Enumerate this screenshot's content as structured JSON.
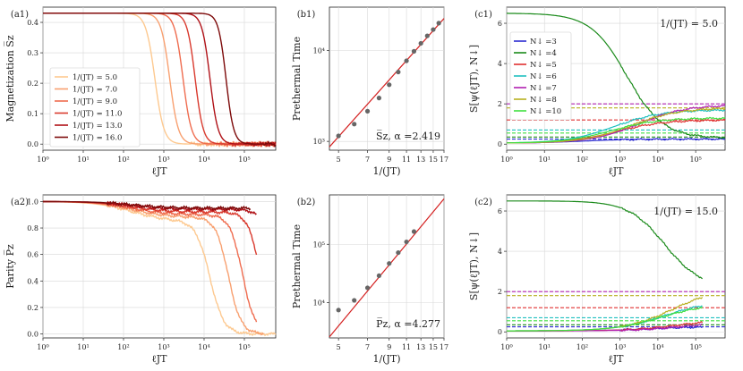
{
  "figure": {
    "colors": {
      "mag_series": [
        "#fdc990",
        "#f8a070",
        "#ef6c4f",
        "#d93a2e",
        "#b01218",
        "#7d0a0a"
      ],
      "fit_line": "#d42020",
      "points": "#666666",
      "dims": {
        "3": "#2a2ad0",
        "4": "#1a8a1a",
        "5": "#e03030",
        "6": "#20c0c0",
        "7": "#b020b0",
        "8": "#b8b020",
        "10": "#40e040"
      }
    }
  },
  "chart_data": [
    {
      "id": "a1",
      "type": "line",
      "panel_label": "(a1)",
      "xlabel": "ℓJT",
      "ylabel": "Magnetization S̅z",
      "xscale": "log",
      "xlim": [
        1,
        600000
      ],
      "ylim": [
        -0.02,
        0.45
      ],
      "xticks": [
        "10⁰",
        "10¹",
        "10²",
        "10³",
        "10⁴",
        "10⁵"
      ],
      "yticks": [
        "0.0",
        "0.1",
        "0.2",
        "0.3",
        "0.4"
      ],
      "legend": [
        "1/(JT) = 5.0",
        "1/(JT) = 7.0",
        "1/(JT) = 9.0",
        "1/(JT) = 11.0",
        "1/(JT) = 13.0",
        "1/(JT) = 16.0"
      ],
      "series": [
        {
          "name": "1/(JT) = 5.0",
          "plateau": 0.43,
          "decay_center": 600,
          "width": 0.45,
          "end": 600000
        },
        {
          "name": "1/(JT) = 7.0",
          "plateau": 0.43,
          "decay_center": 1400,
          "width": 0.43,
          "end": 600000
        },
        {
          "name": "1/(JT) = 9.0",
          "plateau": 0.43,
          "decay_center": 3000,
          "width": 0.42,
          "end": 600000
        },
        {
          "name": "1/(JT) = 11.0",
          "plateau": 0.43,
          "decay_center": 6000,
          "width": 0.4,
          "end": 600000
        },
        {
          "name": "1/(JT) = 13.0",
          "plateau": 0.43,
          "decay_center": 14000,
          "width": 0.4,
          "end": 600000
        },
        {
          "name": "1/(JT) = 16.0",
          "plateau": 0.43,
          "decay_center": 35000,
          "width": 0.38,
          "end": 600000
        }
      ]
    },
    {
      "id": "a2",
      "type": "line",
      "panel_label": "(a2)",
      "xlabel": "ℓJT",
      "ylabel": "Parity P̅z",
      "xscale": "log",
      "xlim": [
        1,
        600000
      ],
      "ylim": [
        -0.03,
        1.05
      ],
      "xticks": [
        "10⁰",
        "10¹",
        "10²",
        "10³",
        "10⁴",
        "10⁵"
      ],
      "yticks": [
        "0.0",
        "0.2",
        "0.4",
        "0.6",
        "0.8",
        "1.0"
      ],
      "series": [
        {
          "name": "1/(JT) = 5.0",
          "plateau_drop": 0.15,
          "decay_center": 14000,
          "width": 0.55,
          "end": 600000
        },
        {
          "name": "1/(JT) = 7.0",
          "plateau_drop": 0.12,
          "decay_center": 40000,
          "width": 0.5,
          "end": 300000
        },
        {
          "name": "1/(JT) = 9.0",
          "plateau_drop": 0.1,
          "decay_center": 90000,
          "width": 0.5,
          "end": 200000
        },
        {
          "name": "1/(JT) = 11.0",
          "plateau_drop": 0.08,
          "decay_center": 250000,
          "width": 0.5,
          "end": 200000
        },
        {
          "name": "1/(JT) = 13.0",
          "plateau_drop": 0.06,
          "decay_center": 600000,
          "width": 0.5,
          "end": 200000
        },
        {
          "name": "1/(JT) = 16.0",
          "plateau_drop": 0.05,
          "decay_center": 2000000,
          "width": 0.5,
          "end": 140000
        }
      ]
    },
    {
      "id": "b1",
      "type": "scatter",
      "panel_label": "(b1)",
      "xlabel": "1/(JT)",
      "ylabel": "Prethermal Time",
      "xscale": "log",
      "yscale": "log",
      "xlim": [
        4.5,
        17
      ],
      "ylim": [
        800,
        30000
      ],
      "xticks": [
        5,
        7,
        9,
        11,
        13,
        15,
        17
      ],
      "xtick_labels": [
        "5",
        "7",
        "9",
        "11",
        "13",
        "15",
        "17"
      ],
      "yticks": [
        "10³",
        "10⁴"
      ],
      "x": [
        5,
        6,
        7,
        8,
        9,
        10,
        11,
        12,
        13,
        14,
        15,
        16
      ],
      "y": [
        1150,
        1550,
        2150,
        3000,
        4200,
        5800,
        7700,
        9800,
        12000,
        14500,
        17000,
        20000
      ],
      "fit": {
        "x": [
          4.5,
          17
        ],
        "y": [
          870,
          22500
        ]
      },
      "annotation": "S̅z, α =2.419"
    },
    {
      "id": "b2",
      "type": "scatter",
      "panel_label": "(b2)",
      "xlabel": "1/(JT)",
      "ylabel": "Prethermal Time",
      "xscale": "log",
      "yscale": "log",
      "xlim": [
        4.5,
        17
      ],
      "ylim": [
        2500,
        700000
      ],
      "xticks": [
        5,
        7,
        9,
        11,
        13,
        15,
        17
      ],
      "xtick_labels": [
        "5",
        "7",
        "9",
        "11",
        "13",
        "15",
        "17"
      ],
      "yticks": [
        "10⁴",
        "10⁵"
      ],
      "x": [
        5,
        6,
        7,
        8,
        9,
        10,
        11,
        12
      ],
      "y": [
        7500,
        11000,
        18000,
        29000,
        47000,
        72000,
        110000,
        165000
      ],
      "fit": {
        "x": [
          4.5,
          17
        ],
        "y": [
          2600,
          600000
        ]
      },
      "annotation": "P̅z, α =4.277"
    },
    {
      "id": "c1",
      "type": "line",
      "panel_label": "(c1)",
      "xlabel": "ℓJT",
      "ylabel": "S[ψ(ℓJT), N↓]",
      "xscale": "log",
      "xlim": [
        1,
        600000
      ],
      "ylim": [
        -0.3,
        6.8
      ],
      "xticks": [
        "10⁰",
        "10¹",
        "10²",
        "10³",
        "10⁴",
        "10⁵"
      ],
      "yticks": [
        "0",
        "2",
        "4",
        "6"
      ],
      "title": "1/(JT) = 5.0",
      "legend": [
        "N↓ =3",
        "N↓ =4",
        "N↓ =5",
        "N↓ =6",
        "N↓ =7",
        "N↓ =8",
        "N↓ =10"
      ],
      "reference_levels": {
        "3": 0.25,
        "4": 0.35,
        "5": 1.2,
        "6": 0.7,
        "7": 2.0,
        "8": 1.8,
        "10": 0.55
      },
      "series": [
        {
          "name": "N↓ =3",
          "start": 0.05,
          "end_value": 0.25,
          "rise_center": 100
        },
        {
          "name": "N↓ =4",
          "start": 6.5,
          "end_value": 0.3,
          "rise_center": 1500
        },
        {
          "name": "N↓ =5",
          "start": 0.05,
          "end_value": 1.2,
          "rise_center": 800
        },
        {
          "name": "N↓ =6",
          "start": 0.05,
          "end_value": 1.7,
          "rise_center": 700
        },
        {
          "name": "N↓ =7",
          "start": 0.05,
          "end_value": 1.95,
          "rise_center": 3000
        },
        {
          "name": "N↓ =8",
          "start": 0.05,
          "end_value": 1.8,
          "rise_center": 2000
        },
        {
          "name": "N↓ =10",
          "start": 0.05,
          "end_value": 1.3,
          "rise_center": 600
        }
      ]
    },
    {
      "id": "c2",
      "type": "line",
      "panel_label": "(c2)",
      "xlabel": "ℓJT",
      "ylabel": "S[ψ(ℓJT), N↓]",
      "xscale": "log",
      "xlim": [
        1,
        600000
      ],
      "ylim": [
        -0.3,
        6.8
      ],
      "xticks": [
        "10⁰",
        "10¹",
        "10²",
        "10³",
        "10⁴",
        "10⁵"
      ],
      "yticks": [
        "0",
        "2",
        "4",
        "6"
      ],
      "title": "1/(JT) = 15.0",
      "reference_levels": {
        "3": 0.25,
        "4": 0.35,
        "5": 1.2,
        "6": 0.7,
        "7": 2.0,
        "8": 1.8,
        "10": 0.55
      },
      "series": [
        {
          "name": "N↓ =3",
          "start": 0.05,
          "end_value": 0.25,
          "rise_center": 5000,
          "stop": 150000
        },
        {
          "name": "N↓ =4",
          "start": 6.5,
          "end_value": 2.2,
          "rise_center": 15000,
          "stop": 150000
        },
        {
          "name": "N↓ =5",
          "start": 0.05,
          "end_value": 0.6,
          "rise_center": 30000,
          "stop": 150000
        },
        {
          "name": "N↓ =6",
          "start": 0.05,
          "end_value": 1.55,
          "rise_center": 15000,
          "stop": 150000
        },
        {
          "name": "N↓ =7",
          "start": 0.05,
          "end_value": 0.5,
          "rise_center": 50000,
          "stop": 150000
        },
        {
          "name": "N↓ =8",
          "start": 0.05,
          "end_value": 2.2,
          "rise_center": 25000,
          "stop": 150000
        },
        {
          "name": "N↓ =10",
          "start": 0.05,
          "end_value": 1.4,
          "rise_center": 12000,
          "stop": 150000
        }
      ]
    }
  ]
}
